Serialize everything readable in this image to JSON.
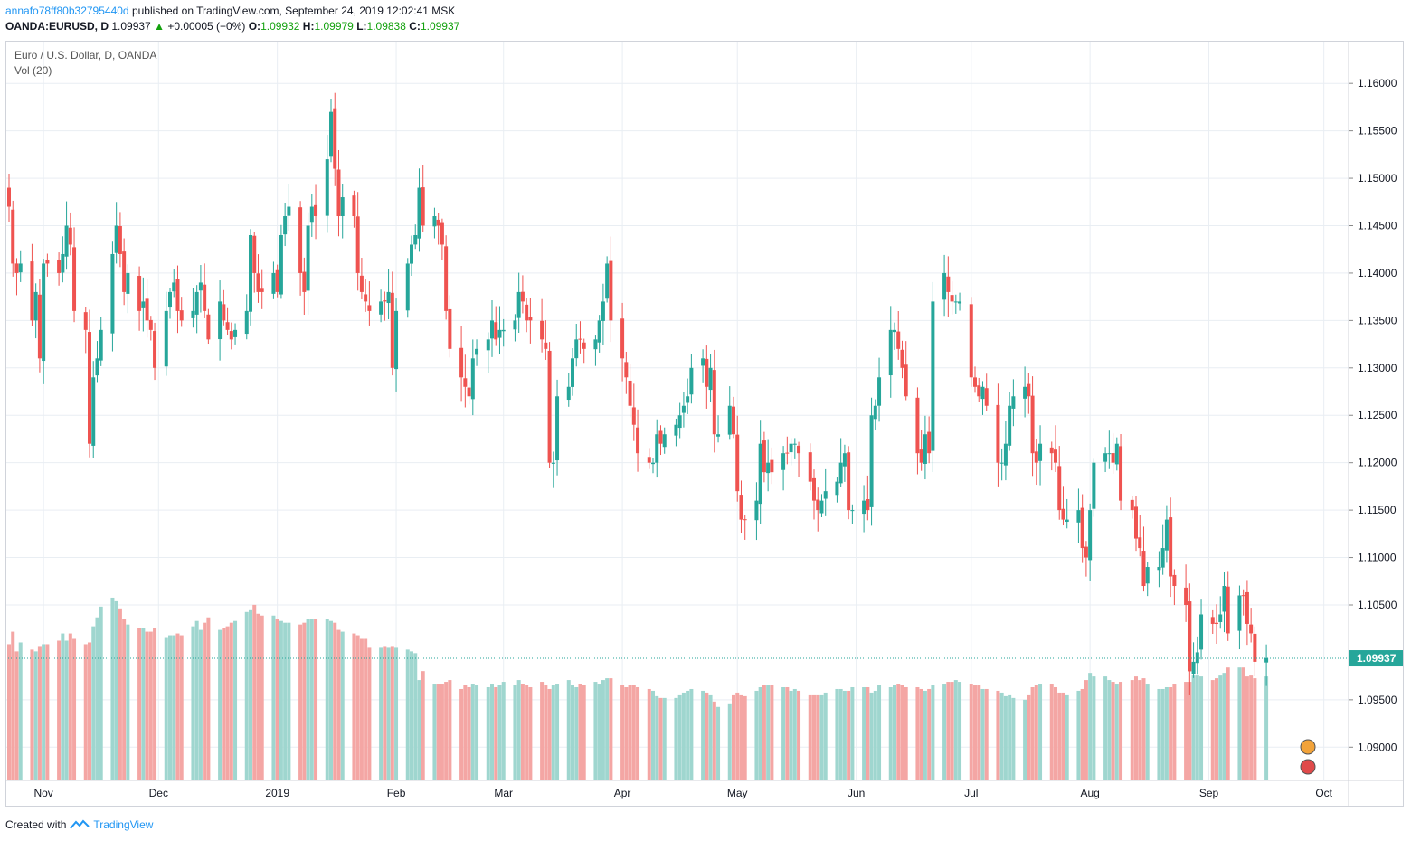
{
  "header": {
    "author": "annafo78ff80b32795440d",
    "published_text": "published on TradingView.com, September 24, 2019 12:02:41 MSK"
  },
  "symbol_line": {
    "symbol": "OANDA:EURUSD, D",
    "last": "1.09937",
    "arrow": "▲",
    "change": "+0.00005 (+0%)",
    "o_label": "O:",
    "o_value": "1.09932",
    "h_label": "H:",
    "h_value": "1.09979",
    "l_label": "L:",
    "l_value": "1.09838",
    "c_label": "C:",
    "c_value": "1.09937"
  },
  "legend": {
    "title": "Euro / U.S. Dollar, D, OANDA",
    "volume": "Vol (20)"
  },
  "footer": {
    "created_with": "Created with",
    "brand": "TradingView"
  },
  "colors": {
    "up": "#26a69a",
    "down": "#ef5350",
    "vol_up": "#9fd6cf",
    "vol_down": "#f4a6a4",
    "grid": "#e9eef3",
    "last_price_bg": "#26a69a"
  },
  "chart_data": {
    "type": "candlestick",
    "symbol": "EURUSD",
    "ylim": [
      1.0865,
      1.1645
    ],
    "y_ticks": [
      "1.16000",
      "1.15500",
      "1.15000",
      "1.14500",
      "1.14000",
      "1.13500",
      "1.13000",
      "1.12500",
      "1.12000",
      "1.11500",
      "1.11000",
      "1.10500",
      "1.09500",
      "1.09000"
    ],
    "x_ticks": [
      "Nov",
      "Dec",
      "2019",
      "Feb",
      "Mar",
      "Apr",
      "May",
      "Jun",
      "Jul",
      "Aug",
      "Sep",
      "Oct"
    ],
    "last_price": "1.09937",
    "start_date": "2018-10-23",
    "end_date": "2019-09-24",
    "closes": [
      1.147,
      1.141,
      1.14,
      1.141,
      1.135,
      1.138,
      1.131,
      1.141,
      1.141,
      1.14,
      1.142,
      1.145,
      1.143,
      1.136,
      1.134,
      1.122,
      1.129,
      1.131,
      1.134,
      1.142,
      1.145,
      1.142,
      1.138,
      1.14,
      1.136,
      1.137,
      1.135,
      1.134,
      1.13,
      1.136,
      1.138,
      1.139,
      1.136,
      1.135,
      1.136,
      1.138,
      1.139,
      1.136,
      1.133,
      1.137,
      1.135,
      1.134,
      1.133,
      1.134,
      1.136,
      1.144,
      1.14,
      1.138,
      1.138,
      1.14,
      1.138,
      1.144,
      1.146,
      1.147,
      1.14,
      1.138,
      1.145,
      1.147,
      1.146,
      1.152,
      1.157,
      1.151,
      1.146,
      1.148,
      1.146,
      1.14,
      1.138,
      1.137,
      1.136,
      1.137,
      1.137,
      1.138,
      1.13,
      1.136,
      1.141,
      1.143,
      1.144,
      1.149,
      1.145,
      1.146,
      1.145,
      1.143,
      1.136,
      1.132,
      1.129,
      1.128,
      1.127,
      1.131,
      1.132,
      1.133,
      1.135,
      1.133,
      1.134,
      1.134,
      1.135,
      1.138,
      1.137,
      1.135,
      1.135,
      1.133,
      1.132,
      1.12,
      1.12,
      1.127,
      1.128,
      1.131,
      1.133,
      1.133,
      1.132,
      1.133,
      1.135,
      1.137,
      1.141,
      1.135,
      1.131,
      1.129,
      1.126,
      1.124,
      1.121,
      1.12,
      1.12,
      1.123,
      1.122,
      1.123,
      1.124,
      1.125,
      1.126,
      1.127,
      1.13,
      1.131,
      1.128,
      1.13,
      1.123,
      1.123,
      1.126,
      1.123,
      1.117,
      1.114,
      1.114,
      1.116,
      1.122,
      1.119,
      1.12,
      1.119,
      1.121,
      1.121,
      1.122,
      1.122,
      1.121,
      1.118,
      1.116,
      1.115,
      1.116,
      1.117,
      1.118,
      1.12,
      1.121,
      1.115,
      1.115,
      1.116,
      1.115,
      1.125,
      1.126,
      1.129,
      1.134,
      1.134,
      1.132,
      1.13,
      1.127,
      1.121,
      1.12,
      1.123,
      1.121,
      1.137,
      1.14,
      1.138,
      1.137,
      1.137,
      1.137,
      1.129,
      1.128,
      1.127,
      1.128,
      1.126,
      1.12,
      1.12,
      1.122,
      1.126,
      1.127,
      1.128,
      1.127,
      1.121,
      1.12,
      1.122,
      1.121,
      1.12,
      1.115,
      1.114,
      1.114,
      1.115,
      1.111,
      1.11,
      1.115,
      1.12,
      1.121,
      1.121,
      1.12,
      1.122,
      1.116,
      1.115,
      1.112,
      1.111,
      1.107,
      1.109,
      1.109,
      1.111,
      1.114,
      1.108,
      1.107,
      1.105,
      1.098,
      1.099,
      1.1,
      1.104,
      1.103,
      1.103,
      1.104,
      1.107,
      1.102,
      1.106,
      1.106,
      1.103,
      1.102,
      1.099,
      1.0994
    ],
    "volumes": [
      76,
      83,
      72,
      77,
      73,
      72,
      75,
      76,
      76,
      78,
      82,
      78,
      82,
      79,
      76,
      77,
      86,
      91,
      97,
      102,
      100,
      96,
      90,
      87,
      85,
      85,
      83,
      83,
      85,
      80,
      81,
      81,
      82,
      81,
      86,
      89,
      84,
      88,
      91,
      84,
      85,
      86,
      88,
      89,
      94,
      95,
      98,
      93,
      92,
      92,
      90,
      89,
      88,
      88,
      87,
      88,
      90,
      90,
      90,
      90,
      89,
      88,
      84,
      83,
      82,
      81,
      79,
      79,
      74,
      74,
      75,
      74,
      75,
      74,
      73,
      72,
      71,
      56,
      61,
      54,
      54,
      54,
      55,
      56,
      51,
      53,
      52,
      54,
      53,
      52,
      54,
      52,
      53,
      55,
      53,
      56,
      54,
      53,
      52,
      55,
      53,
      51,
      53,
      54,
      56,
      53,
      52,
      54,
      53,
      55,
      54,
      56,
      57,
      57,
      53,
      52,
      53,
      53,
      52,
      51,
      50,
      47,
      46,
      46,
      46,
      48,
      49,
      50,
      51,
      50,
      49,
      48,
      44,
      41,
      43,
      48,
      49,
      48,
      47,
      50,
      52,
      53,
      53,
      53,
      52,
      52,
      50,
      51,
      50,
      48,
      48,
      48,
      48,
      49,
      51,
      51,
      50,
      50,
      52,
      52,
      52,
      49,
      50,
      53,
      52,
      53,
      54,
      53,
      52,
      52,
      51,
      50,
      51,
      53,
      54,
      55,
      55,
      56,
      55,
      54,
      53,
      53,
      51,
      51,
      50,
      49,
      47,
      48,
      46,
      45,
      48,
      52,
      53,
      54,
      54,
      52,
      49,
      49,
      48,
      50,
      51,
      56,
      60,
      58,
      58,
      56,
      55,
      54,
      55,
      56,
      58,
      56,
      57,
      54,
      51,
      51,
      52,
      52,
      54,
      55,
      55,
      59,
      59,
      58,
      56,
      57,
      59,
      60,
      63,
      63,
      63,
      58,
      59,
      57,
      58,
      57,
      57,
      56,
      58,
      56,
      54,
      52,
      52,
      52,
      52,
      51,
      52
    ],
    "series": [
      {
        "name": "Euro / U.S. Dollar, D, OANDA",
        "type": "candlestick"
      },
      {
        "name": "Vol (20)",
        "type": "bar"
      }
    ]
  }
}
